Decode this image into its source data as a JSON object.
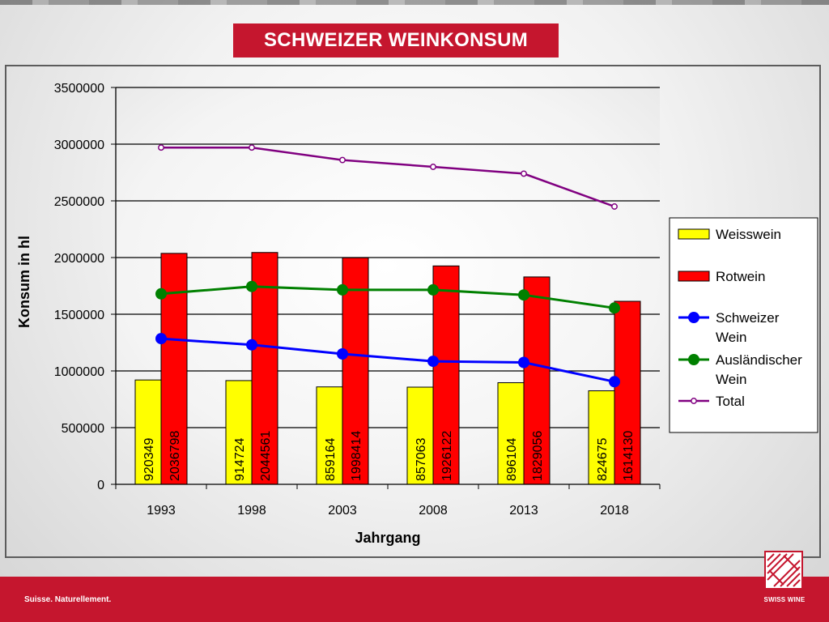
{
  "page": {
    "title": "SCHWEIZER WEINKONSUM",
    "footer_slogan": "Suisse. Naturellement.",
    "logo_text": "SWISS WINE"
  },
  "colors": {
    "brand_red": "#c5162e",
    "weisswein": "#ffff00",
    "rotwein": "#ff0000",
    "schweizer": "#0000ff",
    "auslaendischer": "#008000",
    "total": "#800080"
  },
  "chart_data": {
    "type": "bar",
    "categories": [
      "1993",
      "1998",
      "2003",
      "2008",
      "2013",
      "2018"
    ],
    "xlabel": "Jahrgang",
    "ylabel": "Konsum in hl",
    "ylim": [
      0,
      3500000
    ],
    "yticks": [
      "0",
      "500000",
      "1000000",
      "1500000",
      "2000000",
      "2500000",
      "3000000",
      "3500000"
    ],
    "grid": true,
    "legend_position": "right",
    "bar_series": [
      {
        "name": "Weisswein",
        "values": [
          920349,
          914724,
          859164,
          857063,
          896104,
          824675
        ],
        "labels": [
          "920349",
          "914724",
          "859164",
          "857063",
          "896104",
          "824675"
        ]
      },
      {
        "name": "Rotwein",
        "values": [
          2036798,
          2044561,
          1998414,
          1926122,
          1829056,
          1614130
        ],
        "labels": [
          "2036798",
          "2044561",
          "1998414",
          "1926122",
          "1829056",
          "1614130"
        ]
      }
    ],
    "line_series": [
      {
        "name": "Schweizer Wein",
        "values": [
          1285000,
          1230000,
          1150000,
          1085000,
          1075000,
          905000
        ]
      },
      {
        "name": "Ausländischer Wein",
        "values": [
          1680000,
          1745000,
          1715000,
          1715000,
          1670000,
          1555000
        ]
      },
      {
        "name": "Total",
        "values": [
          2970000,
          2970000,
          2860000,
          2800000,
          2740000,
          2450000
        ]
      }
    ],
    "legend": [
      {
        "label": "Weisswein",
        "kind": "bar",
        "color": "#ffff00"
      },
      {
        "label": "Rotwein",
        "kind": "bar",
        "color": "#ff0000"
      },
      {
        "label": "Schweizer Wein",
        "kind": "line-big",
        "color": "#0000ff"
      },
      {
        "label": "Ausländischer Wein",
        "kind": "line-big",
        "color": "#008000"
      },
      {
        "label": "Total",
        "kind": "line-small",
        "color": "#800080"
      }
    ]
  }
}
